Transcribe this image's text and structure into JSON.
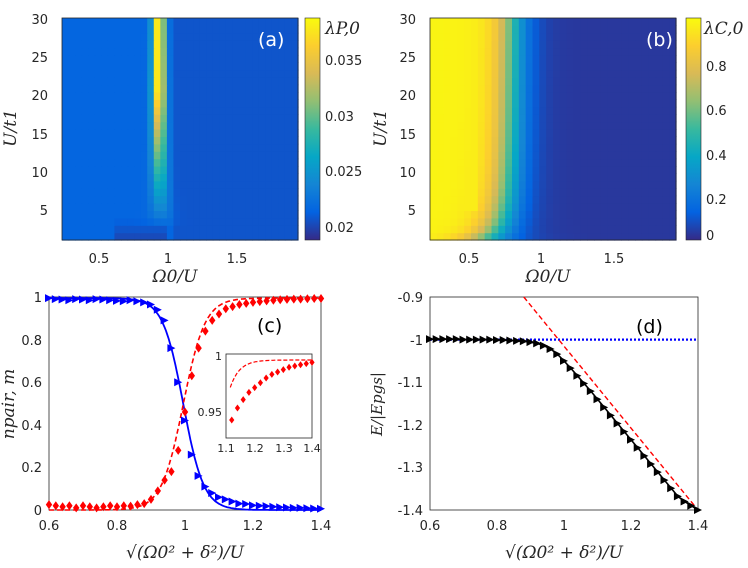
{
  "chart_data": [
    {
      "type": "heatmap",
      "panel_label": "(a)",
      "xlabel": "Ω0/U",
      "ylabel": "U/t1",
      "colorbar_label": "λP,0",
      "x_ticks": [
        "0.5",
        "1",
        "1.5"
      ],
      "y_ticks": [
        "5",
        "10",
        "15",
        "20",
        "25",
        "30"
      ],
      "colorbar_ticks": [
        "0.02",
        "0.025",
        "0.03",
        "0.035"
      ],
      "xlim": [
        0.2,
        2.0
      ],
      "ylim": [
        1,
        30
      ],
      "clim": [
        0.0185,
        0.0385
      ],
      "feature": "narrow bright column near Ω0/U ≈ 0.9–0.95 peaking ≈ 0.038 at large U; background ≈ 0.021"
    },
    {
      "type": "heatmap",
      "panel_label": "(b)",
      "xlabel": "Ω0/U",
      "ylabel": "U/t1",
      "colorbar_label": "λC,0",
      "x_ticks": [
        "0.5",
        "1",
        "1.5"
      ],
      "y_ticks": [
        "5",
        "10",
        "15",
        "20",
        "25",
        "30"
      ],
      "colorbar_ticks": [
        "0",
        "0.2",
        "0.4",
        "0.6",
        "0.8"
      ],
      "xlim": [
        0.2,
        2.0
      ],
      "ylim": [
        1,
        30
      ],
      "clim": [
        -0.03,
        0.97
      ],
      "feature": "high (≈0.95) for Ω0/U below ≈0.6, decreasing to ≈0 beyond Ω0/U ≈ 0.95"
    },
    {
      "type": "line",
      "panel_label": "(c)",
      "xlabel": "√(Ω0² + δ²)/U",
      "ylabel": "npair, m",
      "xlim": [
        0.6,
        1.4
      ],
      "ylim": [
        0,
        1
      ],
      "x_ticks": [
        "0.6",
        "0.8",
        "1",
        "1.2",
        "1.4"
      ],
      "y_ticks": [
        "0",
        "0.2",
        "0.4",
        "0.6",
        "0.8",
        "1"
      ],
      "series": [
        {
          "name": "npair (markers)",
          "color": "#0000ff",
          "marker": "triangle-right",
          "x": [
            0.6,
            0.62,
            0.64,
            0.66,
            0.68,
            0.7,
            0.72,
            0.74,
            0.76,
            0.78,
            0.8,
            0.82,
            0.84,
            0.86,
            0.88,
            0.9,
            0.92,
            0.94,
            0.96,
            0.98,
            1.0,
            1.02,
            1.04,
            1.06,
            1.08,
            1.1,
            1.12,
            1.14,
            1.16,
            1.18,
            1.2,
            1.22,
            1.24,
            1.26,
            1.28,
            1.3,
            1.32,
            1.34,
            1.36,
            1.38,
            1.4
          ],
          "y": [
            0.995,
            0.99,
            0.988,
            0.985,
            0.99,
            0.988,
            0.985,
            0.99,
            0.988,
            0.985,
            0.982,
            0.98,
            0.985,
            0.98,
            0.975,
            0.965,
            0.94,
            0.89,
            0.76,
            0.6,
            0.42,
            0.26,
            0.16,
            0.11,
            0.08,
            0.06,
            0.05,
            0.04,
            0.03,
            0.028,
            0.022,
            0.02,
            0.018,
            0.015,
            0.013,
            0.012,
            0.01,
            0.01,
            0.008,
            0.007,
            0.006
          ]
        },
        {
          "name": "npair (fit)",
          "color": "#0000ff",
          "style": "solid",
          "x0": 0.995,
          "width": 0.03
        },
        {
          "name": "m (markers)",
          "color": "#ff0000",
          "marker": "diamond",
          "x": [
            0.6,
            0.62,
            0.64,
            0.66,
            0.68,
            0.7,
            0.72,
            0.74,
            0.76,
            0.78,
            0.8,
            0.82,
            0.84,
            0.86,
            0.88,
            0.9,
            0.92,
            0.94,
            0.96,
            0.98,
            1.0,
            1.02,
            1.04,
            1.06,
            1.08,
            1.1,
            1.12,
            1.14,
            1.16,
            1.18,
            1.2,
            1.22,
            1.24,
            1.26,
            1.28,
            1.3,
            1.32,
            1.34,
            1.36,
            1.38,
            1.4
          ],
          "y": [
            0.025,
            0.02,
            0.015,
            0.02,
            0.01,
            0.02,
            0.015,
            0.01,
            0.015,
            0.02,
            0.015,
            0.02,
            0.018,
            0.025,
            0.03,
            0.05,
            0.09,
            0.14,
            0.18,
            0.28,
            0.46,
            0.63,
            0.76,
            0.84,
            0.89,
            0.92,
            0.945,
            0.955,
            0.965,
            0.97,
            0.975,
            0.978,
            0.982,
            0.985,
            0.987,
            0.989,
            0.99,
            0.99,
            0.992,
            0.993,
            0.993
          ]
        },
        {
          "name": "m (fit)",
          "color": "#ff0000",
          "style": "dashed",
          "x0": 0.995,
          "width": 0.032
        }
      ],
      "inset": {
        "xlim": [
          1.1,
          1.4
        ],
        "ylim": [
          0.93,
          1.0
        ],
        "x_ticks": [
          "1.1",
          "1.2",
          "1.3",
          "1.4"
        ],
        "y_ticks": [
          "0.95",
          "1"
        ],
        "markers_x": [
          1.12,
          1.14,
          1.16,
          1.18,
          1.2,
          1.22,
          1.24,
          1.26,
          1.28,
          1.3,
          1.32,
          1.34,
          1.36,
          1.38,
          1.4
        ],
        "markers_y": [
          0.945,
          0.955,
          0.962,
          0.968,
          0.972,
          0.976,
          0.98,
          0.983,
          0.985,
          0.987,
          0.989,
          0.99,
          0.991,
          0.992,
          0.993
        ]
      }
    },
    {
      "type": "line",
      "panel_label": "(d)",
      "xlabel": "√(Ω0² + δ²)/U",
      "ylabel": "E/|Epgs|",
      "xlim": [
        0.6,
        1.4
      ],
      "ylim": [
        -1.4,
        -0.9
      ],
      "x_ticks": [
        "0.6",
        "0.8",
        "1",
        "1.2",
        "1.4"
      ],
      "y_ticks": [
        "-0.9",
        "-1",
        "-1.1",
        "-1.2",
        "-1.3",
        "-1.4"
      ],
      "series": [
        {
          "name": "E (markers)",
          "color": "#000000",
          "marker": "triangle-right",
          "x": [
            0.6,
            0.62,
            0.64,
            0.66,
            0.68,
            0.7,
            0.72,
            0.74,
            0.76,
            0.78,
            0.8,
            0.82,
            0.84,
            0.86,
            0.88,
            0.9,
            0.92,
            0.94,
            0.96,
            0.98,
            1.0,
            1.02,
            1.04,
            1.06,
            1.08,
            1.1,
            1.12,
            1.14,
            1.16,
            1.18,
            1.2,
            1.22,
            1.24,
            1.26,
            1.28,
            1.3,
            1.32,
            1.34,
            1.36,
            1.38,
            1.4
          ],
          "y": [
            -0.999,
            -0.999,
            -0.999,
            -0.999,
            -0.999,
            -1.0,
            -1.0,
            -1.0,
            -1.0,
            -1.0,
            -1.001,
            -1.001,
            -1.002,
            -1.003,
            -1.004,
            -1.006,
            -1.009,
            -1.014,
            -1.022,
            -1.034,
            -1.05,
            -1.067,
            -1.085,
            -1.103,
            -1.121,
            -1.14,
            -1.159,
            -1.178,
            -1.197,
            -1.216,
            -1.235,
            -1.254,
            -1.273,
            -1.292,
            -1.311,
            -1.33,
            -1.349,
            -1.368,
            -1.38,
            -1.39,
            -1.4
          ]
        },
        {
          "name": "dotted",
          "color": "#0000ff",
          "style": "dotted",
          "y": -1.0
        },
        {
          "name": "dashed",
          "color": "#ff0000",
          "style": "dashed",
          "x": [
            0.88,
            1.4
          ],
          "y": [
            -0.9,
            -1.4
          ]
        }
      ]
    }
  ]
}
